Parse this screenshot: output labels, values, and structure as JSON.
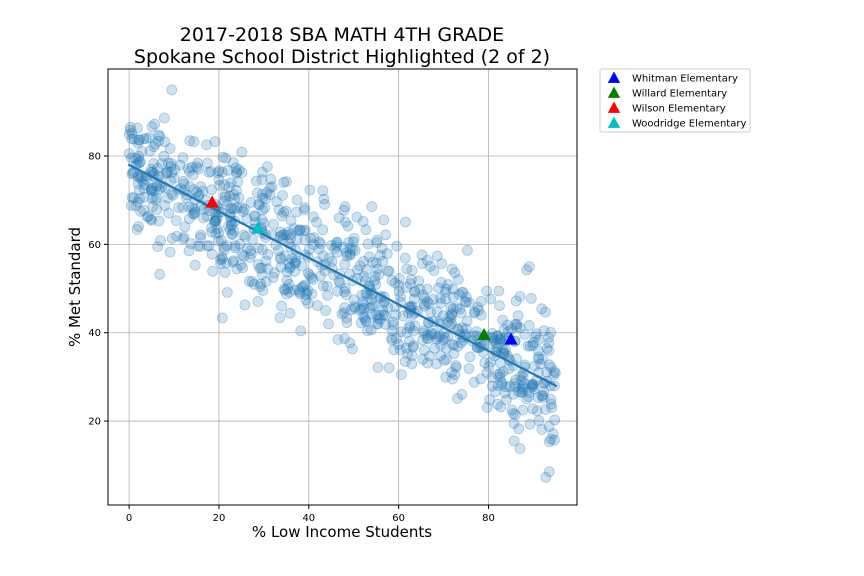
{
  "chart_data": {
    "type": "scatter",
    "title": [
      "2017-2018 SBA MATH 4TH GRADE",
      "Spokane School District Highlighted (2 of 2)"
    ],
    "xlabel": "% Low Income Students",
    "ylabel": "% Met Standard",
    "xlim": [
      -4.7,
      99.7
    ],
    "ylim": [
      1.0,
      99.7
    ],
    "xticks": [
      0,
      20,
      40,
      60,
      80
    ],
    "yticks": [
      20,
      40,
      60,
      80
    ],
    "grid": true,
    "legend_position": "outside-top-right",
    "colors": {
      "scatter": "#1f77b4",
      "trend": "#1f77b4",
      "Whitman Elementary": "#0000ff",
      "Willard Elementary": "#008000",
      "Wilson Elementary": "#ff0000",
      "Woodridge Elementary": "#00bfbf"
    },
    "trendline": {
      "x": [
        0,
        95
      ],
      "y": [
        78,
        28
      ]
    },
    "scatter_points_count": 900,
    "highlighted": [
      {
        "name": "Whitman Elementary",
        "x": 85.0,
        "y": 38.5
      },
      {
        "name": "Willard Elementary",
        "x": 79.0,
        "y": 39.5
      },
      {
        "name": "Wilson Elementary",
        "x": 18.5,
        "y": 69.5
      },
      {
        "name": "Woodridge Elementary",
        "x": 28.7,
        "y": 63.7
      }
    ],
    "legend": [
      "Whitman Elementary",
      "Willard Elementary",
      "Wilson Elementary",
      "Woodridge Elementary"
    ]
  }
}
